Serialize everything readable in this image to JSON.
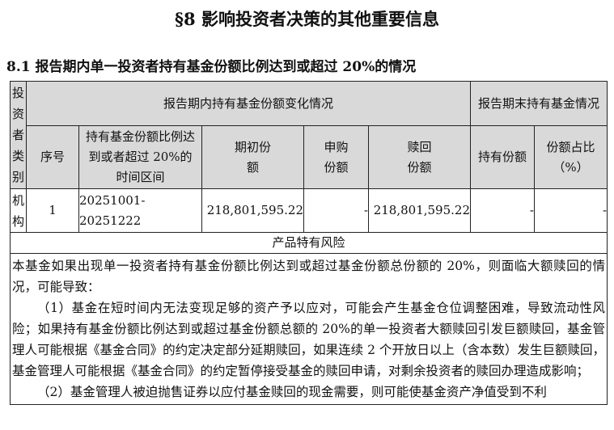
{
  "section_title": "§8 影响投资者决策的其他重要信息",
  "subsection_title": "8.1 报告期内单一投资者持有基金份额比例达到或超过 20%的情况",
  "table": {
    "col_investor_type": "投资者类别",
    "group_period_change": "报告期内持有基金份额变化情况",
    "group_period_end": "报告期末持有基金情况",
    "col_seq": "序号",
    "col_interval": "持有基金份额比例达到或者超过 20%的时间区间",
    "col_opening": "期初份额",
    "col_subscribe": "申购份额",
    "col_redeem": "赎回份额",
    "col_holding": "持有份额",
    "col_ratio": "份额占比（%）",
    "rows": [
      {
        "investor_type": "机构",
        "seq": "1",
        "interval": "20251001-20251222",
        "opening": "218,801,595.22",
        "subscribe": "-",
        "redeem": "218,801,595.22",
        "holding": "-",
        "ratio": "-"
      }
    ],
    "risk_title": "产品特有风险",
    "risk_paragraphs": [
      "本基金如果出现单一投资者持有基金份额比例达到或超过基金份额总份额的 20%，则面临大额赎回的情况，可能导致：",
      "（1）基金在短时间内无法变现足够的资产予以应对，可能会产生基金仓位调整困难，导致流动性风险；如果持有基金份额比例达到或超过基金份额总额的 20%的单一投资者大额赎回引发巨额赎回，基金管理人可能根据《基金合同》的约定决定部分延期赎回，如果连续 2 个开放日以上（含本数）发生巨额赎回，基金管理人可能根据《基金合同》的约定暂停接受基金的赎回申请，对剩余投资者的赎回办理造成影响；",
      "（2）基金管理人被迫抛售证券以应付基金赎回的现金需要，则可能使基金资产净值受到不利"
    ]
  }
}
